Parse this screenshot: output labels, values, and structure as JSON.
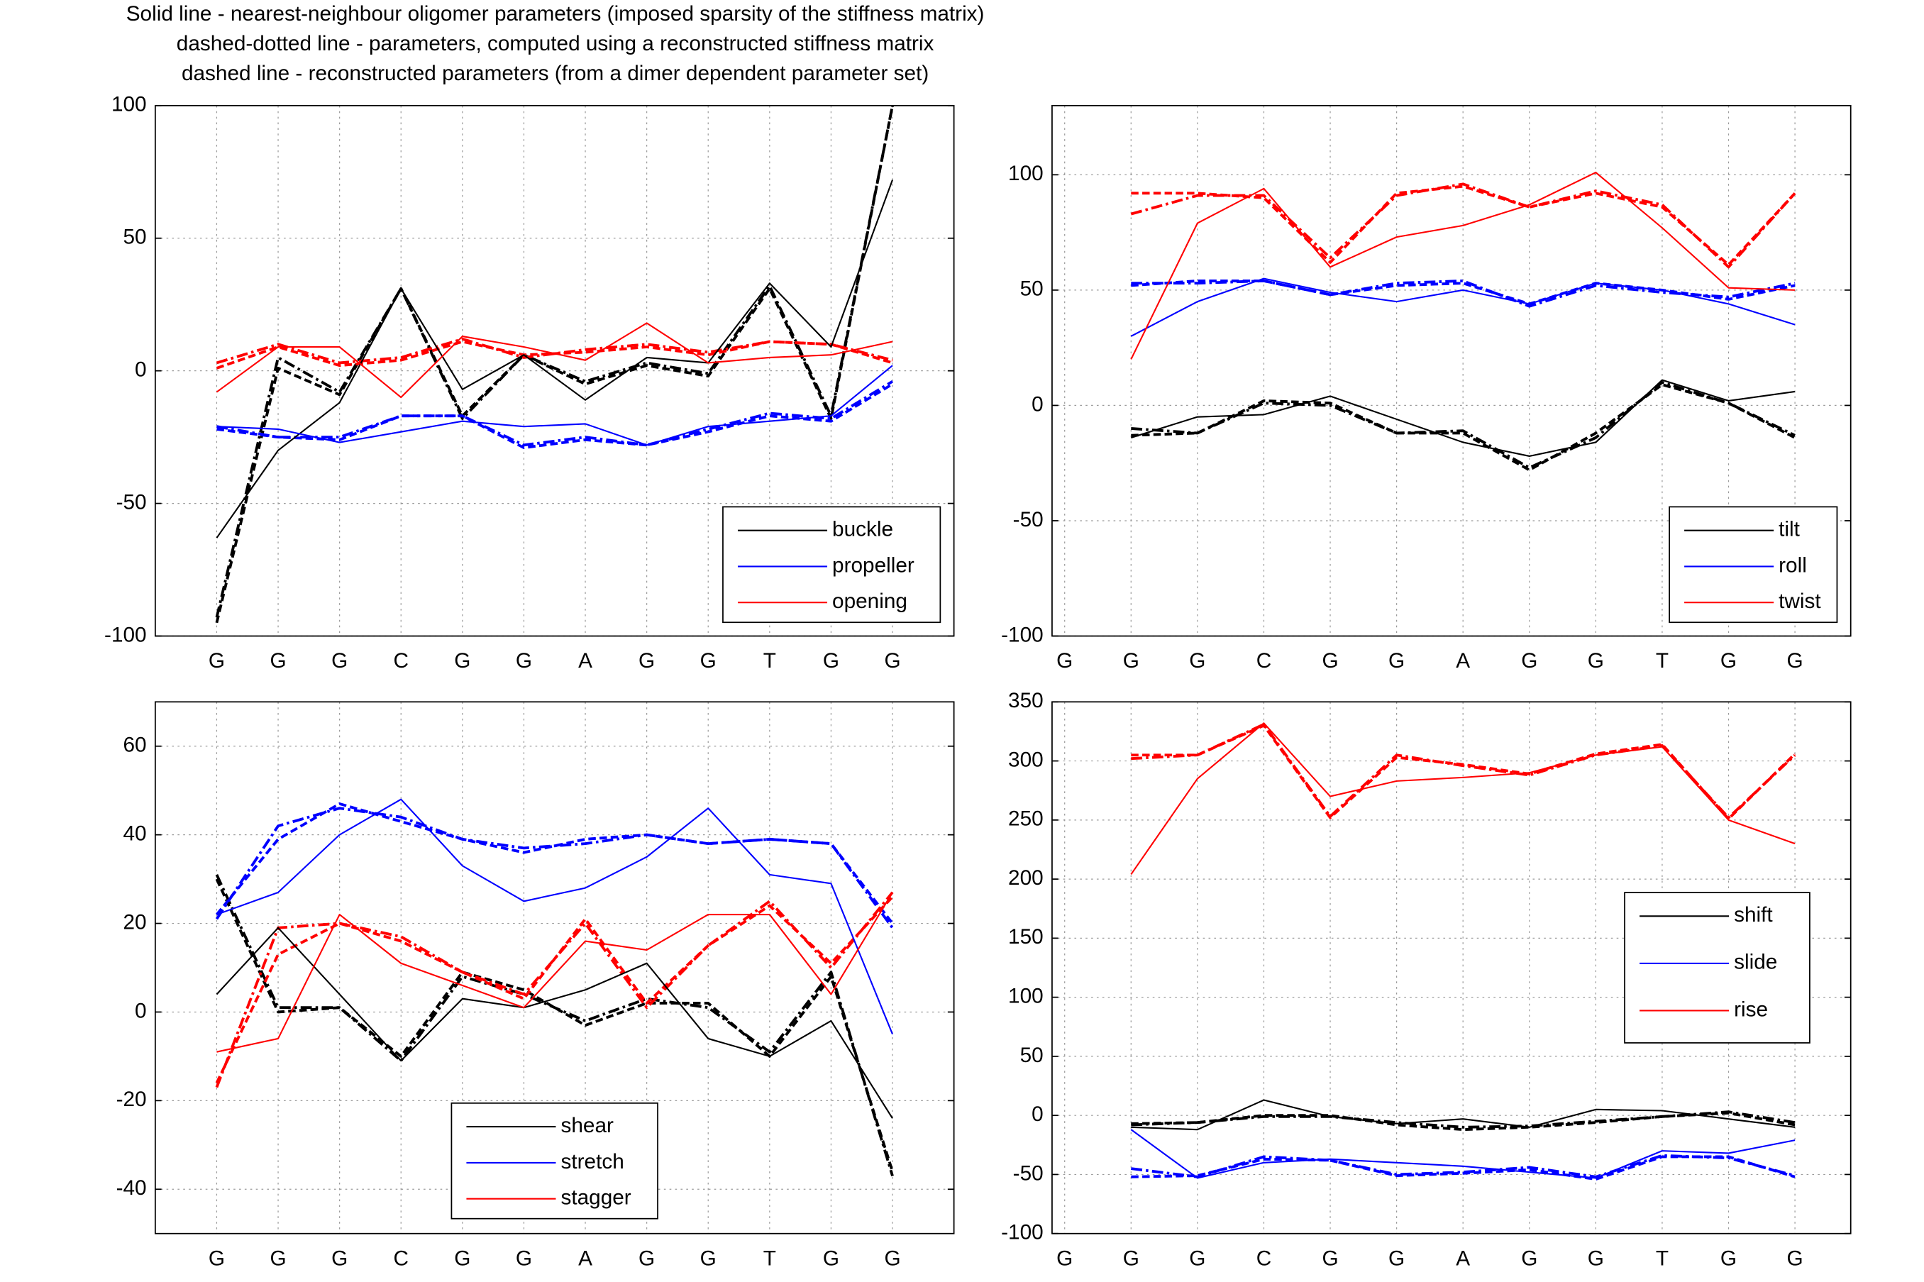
{
  "chart_data": [
    {
      "type": "line",
      "title": [
        "Solid line - nearest-neighbour oligomer parameters (imposed sparsity of the stiffness matrix)",
        "dashed-dotted line - parameters, computed using a reconstructed stiffness matrix",
        "dashed line - reconstructed parameters (from a dimer dependent parameter set)"
      ],
      "categories": [
        "G",
        "G",
        "G",
        "C",
        "G",
        "G",
        "A",
        "G",
        "G",
        "T",
        "G",
        "G"
      ],
      "ylim": [
        -100,
        100
      ],
      "yticks": [
        -100,
        -50,
        0,
        50,
        100
      ],
      "grid": true,
      "legend": "lower right",
      "series": [
        {
          "name": "buckle",
          "color": "#000000",
          "style": "solid",
          "values": [
            -63,
            -30,
            -12,
            31,
            -7,
            6,
            -11,
            5,
            3,
            33,
            9,
            72
          ]
        },
        {
          "name": "propeller",
          "color": "#0000ff",
          "style": "solid",
          "values": [
            -21,
            -22,
            -27,
            -23,
            -19,
            -21,
            -20,
            -28,
            -21,
            -19,
            -17,
            2
          ]
        },
        {
          "name": "opening",
          "color": "#ff0000",
          "style": "solid",
          "values": [
            -8,
            9,
            9,
            -10,
            13,
            9,
            4,
            18,
            3,
            5,
            6,
            11
          ]
        },
        {
          "color": "#000000",
          "style": "dashdot",
          "values": [
            -93,
            5,
            -8,
            31,
            -18,
            6,
            -4,
            3,
            -1,
            32,
            -17,
            100
          ]
        },
        {
          "color": "#000000",
          "style": "dashed",
          "values": [
            -95,
            1,
            -9,
            31,
            -17,
            6,
            -5,
            2,
            -2,
            31,
            -18,
            100
          ]
        },
        {
          "color": "#0000ff",
          "style": "dashdot",
          "values": [
            -21,
            -25,
            -25,
            -17,
            -17,
            -28,
            -25,
            -28,
            -22,
            -16,
            -18,
            -4
          ]
        },
        {
          "color": "#0000ff",
          "style": "dashed",
          "values": [
            -22,
            -25,
            -26,
            -17,
            -17,
            -29,
            -26,
            -28,
            -23,
            -17,
            -19,
            -5
          ]
        },
        {
          "color": "#ff0000",
          "style": "dashdot",
          "values": [
            3,
            10,
            3,
            5,
            12,
            5,
            8,
            10,
            7,
            11,
            10,
            4
          ]
        },
        {
          "color": "#ff0000",
          "style": "dashed",
          "values": [
            1,
            9,
            2,
            4,
            11,
            6,
            7,
            9,
            6,
            11,
            10,
            3
          ]
        }
      ]
    },
    {
      "type": "line",
      "categories": [
        "G",
        "G",
        "G",
        "C",
        "G",
        "G",
        "A",
        "G",
        "G",
        "T",
        "G",
        "G"
      ],
      "ylim": [
        -100,
        130
      ],
      "yticks": [
        -100,
        -50,
        0,
        50,
        100
      ],
      "grid": true,
      "legend": "lower right",
      "series": [
        {
          "name": "tilt",
          "color": "#000000",
          "style": "solid",
          "values": [
            null,
            -14,
            -5,
            -4,
            4,
            -6,
            -16,
            -22,
            -16,
            11,
            2,
            6
          ]
        },
        {
          "name": "roll",
          "color": "#0000ff",
          "style": "solid",
          "values": [
            null,
            30,
            45,
            55,
            49,
            45,
            50,
            44,
            53,
            50,
            44,
            35
          ]
        },
        {
          "name": "twist",
          "color": "#ff0000",
          "style": "solid",
          "values": [
            null,
            20,
            79,
            94,
            60,
            73,
            78,
            87,
            101,
            77,
            51,
            50
          ]
        },
        {
          "color": "#000000",
          "style": "dashdot",
          "values": [
            null,
            -10,
            -12,
            1,
            0,
            -12,
            -11,
            -27,
            -14,
            10,
            1,
            -13
          ]
        },
        {
          "color": "#000000",
          "style": "dashed",
          "values": [
            null,
            -13,
            -12,
            2,
            1,
            -12,
            -12,
            -28,
            -12,
            9,
            1,
            -14
          ]
        },
        {
          "color": "#0000ff",
          "style": "dashdot",
          "values": [
            null,
            53,
            53,
            54,
            48,
            53,
            54,
            43,
            52,
            49,
            47,
            53
          ]
        },
        {
          "color": "#0000ff",
          "style": "dashed",
          "values": [
            null,
            52,
            54,
            54,
            48,
            52,
            53,
            44,
            53,
            50,
            46,
            52
          ]
        },
        {
          "color": "#ff0000",
          "style": "dashdot",
          "values": [
            null,
            83,
            91,
            91,
            64,
            91,
            96,
            86,
            93,
            87,
            60,
            92
          ]
        },
        {
          "color": "#ff0000",
          "style": "dashed",
          "values": [
            null,
            92,
            92,
            90,
            62,
            92,
            95,
            86,
            92,
            86,
            61,
            92
          ]
        }
      ]
    },
    {
      "type": "line",
      "categories": [
        "G",
        "G",
        "G",
        "C",
        "G",
        "G",
        "A",
        "G",
        "G",
        "T",
        "G",
        "G"
      ],
      "ylim": [
        -50,
        70
      ],
      "yticks": [
        -40,
        -20,
        0,
        20,
        40,
        60
      ],
      "grid": true,
      "legend": "lower center",
      "series": [
        {
          "name": "shear",
          "color": "#000000",
          "style": "solid",
          "values": [
            4,
            19,
            4,
            -11,
            3,
            1,
            5,
            11,
            -6,
            -10,
            -2,
            -24
          ]
        },
        {
          "name": "stretch",
          "color": "#0000ff",
          "style": "solid",
          "values": [
            22,
            27,
            40,
            48,
            33,
            25,
            28,
            35,
            46,
            31,
            29,
            -5
          ]
        },
        {
          "name": "stagger",
          "color": "#ff0000",
          "style": "solid",
          "values": [
            -9,
            -6,
            22,
            11,
            6,
            1,
            16,
            14,
            22,
            22,
            4,
            27
          ]
        },
        {
          "color": "#000000",
          "style": "dashdot",
          "values": [
            31,
            1,
            1,
            -11,
            8,
            4,
            -2,
            3,
            1,
            -9,
            9,
            -37
          ]
        },
        {
          "color": "#000000",
          "style": "dashed",
          "values": [
            30,
            0,
            1,
            -10,
            9,
            5,
            -3,
            2,
            2,
            -10,
            8,
            -36
          ]
        },
        {
          "color": "#0000ff",
          "style": "dashdot",
          "values": [
            21,
            42,
            46,
            44,
            39,
            37,
            38,
            40,
            38,
            39,
            38,
            19
          ]
        },
        {
          "color": "#0000ff",
          "style": "dashed",
          "values": [
            22,
            39,
            47,
            43,
            39,
            36,
            39,
            40,
            38,
            39,
            38,
            20
          ]
        },
        {
          "color": "#ff0000",
          "style": "dashdot",
          "values": [
            -17,
            19,
            20,
            17,
            9,
            4,
            20,
            1,
            15,
            25,
            10,
            27
          ]
        },
        {
          "color": "#ff0000",
          "style": "dashed",
          "values": [
            -16,
            13,
            20,
            16,
            9,
            3,
            21,
            2,
            15,
            24,
            11,
            26
          ]
        }
      ]
    },
    {
      "type": "line",
      "categories": [
        "G",
        "G",
        "G",
        "C",
        "G",
        "G",
        "A",
        "G",
        "G",
        "T",
        "G",
        "G"
      ],
      "ylim": [
        -100,
        350
      ],
      "yticks": [
        -100,
        -50,
        0,
        50,
        100,
        150,
        200,
        250,
        300,
        350
      ],
      "grid": true,
      "legend": "center right",
      "series": [
        {
          "name": "shift",
          "color": "#000000",
          "style": "solid",
          "values": [
            null,
            -10,
            -12,
            13,
            -1,
            -7,
            -3,
            -10,
            5,
            4,
            -3,
            -10
          ]
        },
        {
          "name": "slide",
          "color": "#0000ff",
          "style": "solid",
          "values": [
            null,
            -12,
            -53,
            -40,
            -37,
            -40,
            -43,
            -48,
            -53,
            -30,
            -32,
            -21
          ]
        },
        {
          "name": "rise",
          "color": "#ff0000",
          "style": "solid",
          "values": [
            null,
            204,
            285,
            332,
            270,
            283,
            286,
            290,
            305,
            312,
            250,
            230
          ]
        },
        {
          "color": "#000000",
          "style": "dashdot",
          "values": [
            null,
            -8,
            -6,
            -1,
            -1,
            -6,
            -10,
            -9,
            -5,
            -1,
            3,
            -6
          ]
        },
        {
          "color": "#000000",
          "style": "dashed",
          "values": [
            null,
            -7,
            -6,
            0,
            0,
            -8,
            -12,
            -10,
            -6,
            -1,
            2,
            -8
          ]
        },
        {
          "color": "#0000ff",
          "style": "dashdot",
          "values": [
            null,
            -45,
            -52,
            -35,
            -38,
            -50,
            -48,
            -44,
            -52,
            -34,
            -36,
            -51
          ]
        },
        {
          "color": "#0000ff",
          "style": "dashed",
          "values": [
            null,
            -52,
            -51,
            -37,
            -38,
            -51,
            -49,
            -46,
            -54,
            -35,
            -35,
            -52
          ]
        },
        {
          "color": "#ff0000",
          "style": "dashdot",
          "values": [
            null,
            302,
            305,
            331,
            253,
            305,
            296,
            288,
            305,
            313,
            252,
            305
          ]
        },
        {
          "color": "#ff0000",
          "style": "dashed",
          "values": [
            null,
            305,
            305,
            330,
            252,
            303,
            297,
            289,
            306,
            314,
            251,
            306
          ]
        }
      ]
    }
  ]
}
